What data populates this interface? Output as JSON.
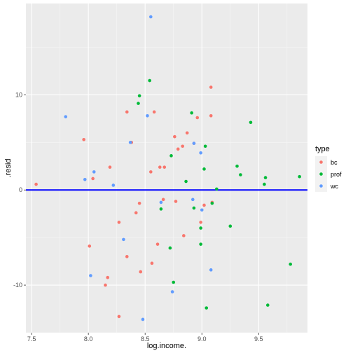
{
  "chart_data": {
    "type": "scatter",
    "xlabel": "log.income.",
    "ylabel": ".resid",
    "xlim": [
      7.45,
      9.93
    ],
    "ylim": [
      -15.0,
      19.6
    ],
    "x_ticks": [
      7.5,
      8.0,
      8.5,
      9.0,
      9.5
    ],
    "x_tick_labels": [
      "7.5",
      "8.0",
      "8.5",
      "9.0",
      "9.5"
    ],
    "y_ticks": [
      -10,
      0,
      10
    ],
    "y_tick_labels": [
      "-10",
      "0",
      "10"
    ],
    "hline": {
      "y": 0,
      "color": "#0000ff"
    },
    "grid": true,
    "legend_position": "right",
    "legend_title": "type",
    "series": [
      {
        "name": "bc",
        "color": "#f8766d",
        "points": [
          [
            7.54,
            0.6
          ],
          [
            7.96,
            5.3
          ],
          [
            8.01,
            -5.9
          ],
          [
            8.04,
            1.2
          ],
          [
            8.15,
            -10.0
          ],
          [
            8.17,
            -9.2
          ],
          [
            8.19,
            2.4
          ],
          [
            8.27,
            -3.4
          ],
          [
            8.27,
            -13.3
          ],
          [
            8.34,
            8.2
          ],
          [
            8.34,
            -7.0
          ],
          [
            8.38,
            5.0
          ],
          [
            8.42,
            -2.4
          ],
          [
            8.45,
            -1.4
          ],
          [
            8.46,
            -8.6
          ],
          [
            8.55,
            1.9
          ],
          [
            8.56,
            -7.7
          ],
          [
            8.58,
            8.2
          ],
          [
            8.61,
            -5.7
          ],
          [
            8.63,
            2.4
          ],
          [
            8.66,
            -1.0
          ],
          [
            8.67,
            2.4
          ],
          [
            8.76,
            5.6
          ],
          [
            8.77,
            -1.2
          ],
          [
            8.79,
            4.3
          ],
          [
            8.83,
            4.6
          ],
          [
            8.84,
            -4.8
          ],
          [
            8.87,
            6.0
          ],
          [
            8.93,
            4.9
          ],
          [
            8.96,
            7.6
          ],
          [
            8.99,
            -3.4
          ],
          [
            9.02,
            -1.6
          ],
          [
            9.08,
            10.8
          ],
          [
            9.08,
            7.8
          ],
          [
            9.09,
            -1.3
          ]
        ]
      },
      {
        "name": "prof",
        "color": "#00ba38",
        "points": [
          [
            8.44,
            9.1
          ],
          [
            8.45,
            9.9
          ],
          [
            8.54,
            11.5
          ],
          [
            8.64,
            -2.0
          ],
          [
            8.72,
            -6.1
          ],
          [
            8.73,
            3.6
          ],
          [
            8.75,
            -9.7
          ],
          [
            8.86,
            0.9
          ],
          [
            8.91,
            8.1
          ],
          [
            8.93,
            -1.9
          ],
          [
            8.99,
            -5.7
          ],
          [
            8.99,
            -4.0
          ],
          [
            9.02,
            2.2
          ],
          [
            9.03,
            4.6
          ],
          [
            9.04,
            -12.4
          ],
          [
            9.09,
            -1.4
          ],
          [
            9.13,
            0.1
          ],
          [
            9.25,
            -3.8
          ],
          [
            9.31,
            2.5
          ],
          [
            9.34,
            1.6
          ],
          [
            9.43,
            7.1
          ],
          [
            9.55,
            0.6
          ],
          [
            9.56,
            1.3
          ],
          [
            9.58,
            -12.1
          ],
          [
            9.78,
            -7.8
          ],
          [
            9.86,
            1.4
          ]
        ]
      },
      {
        "name": "wc",
        "color": "#619cff",
        "points": [
          [
            7.8,
            7.7
          ],
          [
            7.97,
            1.1
          ],
          [
            8.02,
            -9.0
          ],
          [
            8.05,
            1.9
          ],
          [
            8.22,
            0.5
          ],
          [
            8.31,
            -5.2
          ],
          [
            8.37,
            5.0
          ],
          [
            8.48,
            -13.6
          ],
          [
            8.52,
            7.8
          ],
          [
            8.55,
            18.2
          ],
          [
            8.64,
            -1.3
          ],
          [
            8.74,
            -10.7
          ],
          [
            8.92,
            -1.0
          ],
          [
            8.93,
            4.9
          ],
          [
            8.99,
            3.9
          ],
          [
            9.0,
            -2.1
          ],
          [
            9.08,
            -8.4
          ]
        ]
      }
    ]
  }
}
